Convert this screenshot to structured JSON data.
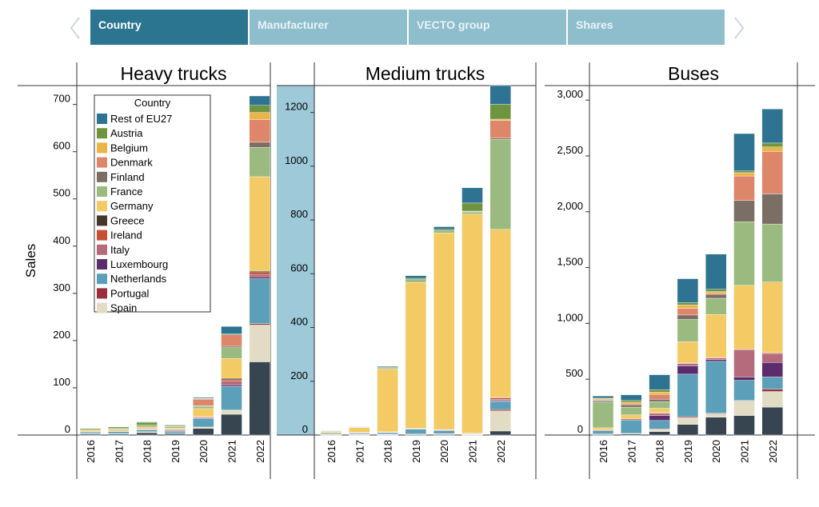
{
  "tabs": {
    "items": [
      {
        "label": "Country",
        "active": true
      },
      {
        "label": "Manufacturer",
        "active": false
      },
      {
        "label": "VECTO group",
        "active": false
      },
      {
        "label": "Shares",
        "active": false
      }
    ]
  },
  "colors": {
    "Rest of EU27": "#2e7391",
    "Austria": "#6f9440",
    "Belgium": "#ebb446",
    "Denmark": "#de8669",
    "Finland": "#7b6e64",
    "France": "#9bba7f",
    "Germany": "#f3ca63",
    "Greece": "#45372b",
    "Ireland": "#c65034",
    "Italy": "#b66b7d",
    "Luxembourg": "#5c2d6c",
    "Netherlands": "#5b9fb8",
    "Portugal": "#9a2f3e",
    "Spain": "#e3dcc4",
    "Other": "#374550",
    "highlight": "#9dc9d9"
  },
  "chart_data": [
    {
      "type": "bar",
      "stacked": true,
      "title": "Heavy trucks",
      "ylabel": "Sales",
      "xlabel": "",
      "ylim": [
        0,
        740
      ],
      "yticks": [
        0,
        100,
        200,
        300,
        400,
        500,
        600,
        700
      ],
      "categories": [
        "2016",
        "2017",
        "2018",
        "2019",
        "2020",
        "2021",
        "2022"
      ],
      "legend": {
        "title": "Country",
        "placement": "top-left"
      },
      "series": [
        {
          "values": [
            2,
            2,
            5,
            3,
            14,
            44,
            155
          ]
        },
        {
          "name": "Spain",
          "values": [
            1,
            1,
            2,
            1,
            3,
            8,
            78
          ]
        },
        {
          "name": "Portugal",
          "values": [
            0,
            0,
            0,
            0,
            0,
            1,
            3
          ]
        },
        {
          "name": "Netherlands",
          "values": [
            3,
            4,
            4,
            4,
            18,
            50,
            95
          ]
        },
        {
          "name": "Luxembourg",
          "values": [
            0,
            0,
            1,
            1,
            1,
            3,
            4
          ]
        },
        {
          "name": "Italy",
          "values": [
            1,
            1,
            1,
            2,
            2,
            8,
            4
          ]
        },
        {
          "name": "Ireland",
          "values": [
            0,
            0,
            0,
            0,
            1,
            3,
            5
          ]
        },
        {
          "name": "Greece",
          "values": [
            0,
            0,
            0,
            1,
            0,
            3,
            3
          ]
        },
        {
          "name": "Germany",
          "values": [
            3,
            3,
            4,
            3,
            17,
            42,
            200
          ]
        },
        {
          "name": "France",
          "values": [
            2,
            2,
            4,
            3,
            5,
            23,
            62
          ]
        },
        {
          "name": "Finland",
          "values": [
            0,
            0,
            0,
            0,
            1,
            3,
            11
          ]
        },
        {
          "name": "Denmark",
          "values": [
            0,
            0,
            0,
            0,
            14,
            24,
            48
          ]
        },
        {
          "name": "Belgium",
          "values": [
            0,
            1,
            0,
            1,
            1,
            0,
            15
          ]
        },
        {
          "name": "Austria",
          "values": [
            2,
            3,
            6,
            2,
            1,
            2,
            15
          ]
        },
        {
          "name": "Rest of EU27",
          "values": [
            0,
            0,
            1,
            1,
            2,
            16,
            20
          ]
        }
      ]
    },
    {
      "type": "bar",
      "stacked": true,
      "title": "Medium trucks",
      "ylabel": "",
      "xlabel": "",
      "ylim": [
        0,
        1300
      ],
      "yticks": [
        0,
        200,
        400,
        600,
        800,
        1000,
        1200
      ],
      "categories": [
        "2016",
        "2017",
        "2018",
        "2019",
        "2020",
        "2021",
        "2022"
      ],
      "highlighted": true,
      "series": [
        {
          "values": [
            1,
            1,
            1,
            2,
            3,
            1,
            15
          ]
        },
        {
          "name": "Spain",
          "values": [
            1,
            1,
            1,
            1,
            1,
            2,
            75
          ]
        },
        {
          "name": "Portugal",
          "values": [
            1,
            1,
            1,
            1,
            1,
            1,
            5
          ]
        },
        {
          "name": "Netherlands",
          "values": [
            4,
            4,
            6,
            18,
            12,
            2,
            30
          ]
        },
        {
          "name": "Luxembourg",
          "values": [
            0,
            0,
            1,
            1,
            1,
            0,
            3
          ]
        },
        {
          "name": "Italy",
          "values": [
            0,
            1,
            1,
            1,
            1,
            1,
            5
          ]
        },
        {
          "name": "Ireland",
          "values": [
            0,
            2,
            1,
            1,
            1,
            0,
            5
          ]
        },
        {
          "name": "Greece",
          "values": [
            0,
            0,
            0,
            0,
            0,
            0,
            2
          ]
        },
        {
          "name": "Germany",
          "values": [
            5,
            18,
            233,
            543,
            732,
            815,
            625
          ]
        },
        {
          "name": "France",
          "values": [
            2,
            1,
            5,
            10,
            8,
            8,
            335
          ]
        },
        {
          "name": "Finland",
          "values": [
            0,
            0,
            0,
            0,
            0,
            2,
            5
          ]
        },
        {
          "name": "Denmark",
          "values": [
            0,
            0,
            0,
            0,
            0,
            1,
            65
          ]
        },
        {
          "name": "Belgium",
          "values": [
            0,
            0,
            0,
            0,
            0,
            0,
            5
          ]
        },
        {
          "name": "Austria",
          "values": [
            1,
            1,
            3,
            5,
            5,
            30,
            55
          ]
        },
        {
          "name": "Rest of EU27",
          "values": [
            1,
            1,
            3,
            10,
            10,
            57,
            70
          ]
        }
      ]
    },
    {
      "type": "bar",
      "stacked": true,
      "title": "Buses",
      "ylabel": "",
      "xlabel": "",
      "ylim": [
        0,
        3130
      ],
      "yticks": [
        0,
        500,
        1000,
        1500,
        2000,
        2500,
        3000
      ],
      "ytick_labels": [
        "0",
        "500",
        "1,000",
        "1,500",
        "2,000",
        "2,500",
        "3,000"
      ],
      "categories": [
        "2016",
        "2017",
        "2018",
        "2019",
        "2020",
        "2021",
        "2022"
      ],
      "series": [
        {
          "values": [
            5,
            10,
            30,
            95,
            160,
            175,
            250
          ]
        },
        {
          "name": "Spain",
          "values": [
            5,
            5,
            20,
            60,
            30,
            130,
            140
          ]
        },
        {
          "name": "Portugal",
          "values": [
            0,
            0,
            5,
            10,
            5,
            5,
            20
          ]
        },
        {
          "name": "Netherlands",
          "values": [
            30,
            120,
            75,
            380,
            465,
            180,
            110
          ]
        },
        {
          "name": "Luxembourg",
          "values": [
            0,
            0,
            45,
            75,
            15,
            30,
            130
          ]
        },
        {
          "name": "Italy",
          "values": [
            5,
            10,
            20,
            20,
            15,
            245,
            75
          ]
        },
        {
          "name": "Ireland",
          "values": [
            0,
            0,
            5,
            5,
            5,
            5,
            10
          ]
        },
        {
          "name": "Greece",
          "values": [
            0,
            0,
            0,
            0,
            0,
            0,
            5
          ]
        },
        {
          "name": "Germany",
          "values": [
            20,
            35,
            40,
            190,
            385,
            570,
            630
          ]
        },
        {
          "name": "France",
          "values": [
            235,
            70,
            60,
            200,
            145,
            570,
            520
          ]
        },
        {
          "name": "Finland",
          "values": [
            10,
            20,
            20,
            40,
            35,
            190,
            270
          ]
        },
        {
          "name": "Denmark",
          "values": [
            5,
            10,
            45,
            60,
            10,
            220,
            380
          ]
        },
        {
          "name": "Belgium",
          "values": [
            10,
            15,
            20,
            30,
            15,
            30,
            40
          ]
        },
        {
          "name": "Austria",
          "values": [
            5,
            15,
            20,
            20,
            20,
            15,
            35
          ]
        },
        {
          "name": "Rest of EU27",
          "values": [
            20,
            50,
            135,
            215,
            315,
            335,
            305
          ]
        }
      ]
    }
  ]
}
